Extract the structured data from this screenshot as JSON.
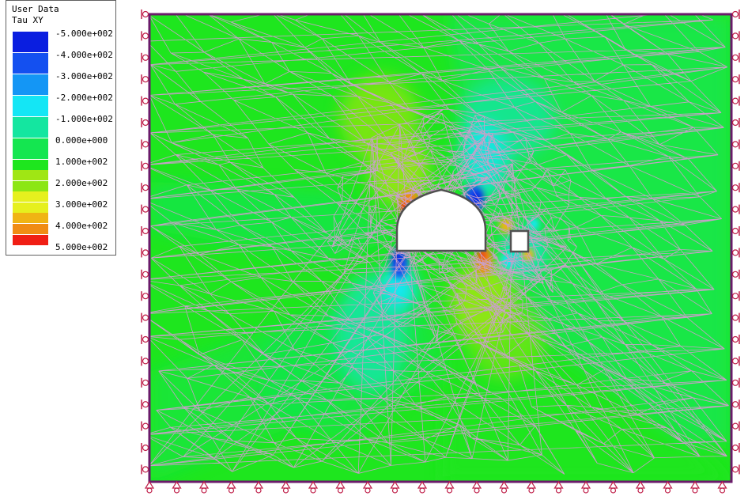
{
  "legend": {
    "title_line1": "User Data",
    "title_line2": "Tau XY",
    "entries": [
      {
        "label": "-5.000e+002",
        "color": "#0a1ee0"
      },
      {
        "label": "-4.000e+002",
        "color": "#1450f0"
      },
      {
        "label": "-3.000e+002",
        "color": "#1496f5"
      },
      {
        "label": "-2.000e+002",
        "color": "#14e6f5"
      },
      {
        "label": "-1.000e+002",
        "color": "#14e6a0"
      },
      {
        "label": "0.000e+000",
        "color": "#14e650"
      },
      {
        "label": "1.000e+002",
        "color": "#1ee61e"
      },
      {
        "label": "2.000e+002",
        "color": "#8ce614"
      },
      {
        "label": "3.000e+002",
        "color": "#e6f01e"
      },
      {
        "label": "4.000e+002",
        "color": "#f08c14"
      },
      {
        "label": "5.000e+002",
        "color": "#f01e14"
      }
    ],
    "extra_swatches": [
      "#a0e614",
      "#f0b414"
    ]
  },
  "colors": {
    "background_field": "#1ee61e",
    "boundary": "#6a1a6a",
    "mesh": "#c8a0c8",
    "excavation_fill": "#ffffff",
    "excavation_outline": "#505050",
    "support_symbol": "#c0204a"
  }
}
